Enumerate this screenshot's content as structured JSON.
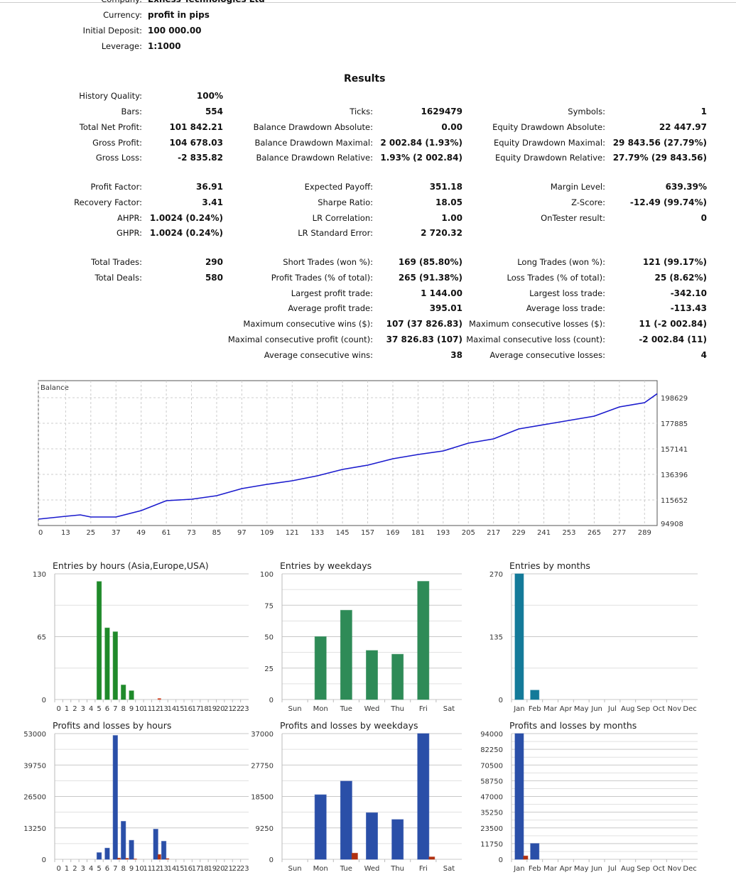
{
  "header": [
    {
      "label": "Company:",
      "value": "Exness Technologies Ltd"
    },
    {
      "label": "Currency:",
      "value": "profit in pips"
    },
    {
      "label": "Initial Deposit:",
      "value": "100 000.00"
    },
    {
      "label": "Leverage:",
      "value": "1:1000"
    }
  ],
  "results_title": "Results",
  "stats": [
    [
      [
        "History Quality:",
        "100%"
      ],
      null,
      null
    ],
    [
      [
        "Bars:",
        "554"
      ],
      [
        "Ticks:",
        "1629479"
      ],
      [
        "Symbols:",
        "1"
      ]
    ],
    [
      [
        "Total Net Profit:",
        "101 842.21"
      ],
      [
        "Balance Drawdown Absolute:",
        "0.00"
      ],
      [
        "Equity Drawdown Absolute:",
        "22 447.97"
      ]
    ],
    [
      [
        "Gross Profit:",
        "104 678.03"
      ],
      [
        "Balance Drawdown Maximal:",
        "2 002.84 (1.93%)"
      ],
      [
        "Equity Drawdown Maximal:",
        "29 843.56 (27.79%)"
      ]
    ],
    [
      [
        "Gross Loss:",
        "-2 835.82"
      ],
      [
        "Balance Drawdown Relative:",
        "1.93% (2 002.84)"
      ],
      [
        "Equity Drawdown Relative:",
        "27.79% (29 843.56)"
      ]
    ],
    [
      [
        "Profit Factor:",
        "36.91"
      ],
      [
        "Expected Payoff:",
        "351.18"
      ],
      [
        "Margin Level:",
        "639.39%"
      ]
    ],
    [
      [
        "Recovery Factor:",
        "3.41"
      ],
      [
        "Sharpe Ratio:",
        "18.05"
      ],
      [
        "Z-Score:",
        "-12.49 (99.74%)"
      ]
    ],
    [
      [
        "AHPR:",
        "1.0024 (0.24%)"
      ],
      [
        "LR Correlation:",
        "1.00"
      ],
      [
        "OnTester result:",
        "0"
      ]
    ],
    [
      [
        "GHPR:",
        "1.0024 (0.24%)"
      ],
      [
        "LR Standard Error:",
        "2 720.32"
      ],
      null
    ],
    [
      [
        "Total Trades:",
        "290"
      ],
      [
        "Short Trades (won %):",
        "169 (85.80%)"
      ],
      [
        "Long Trades (won %):",
        "121 (99.17%)"
      ]
    ],
    [
      [
        "Total Deals:",
        "580"
      ],
      [
        "Profit Trades (% of total):",
        "265 (91.38%)"
      ],
      [
        "Loss Trades (% of total):",
        "25 (8.62%)"
      ]
    ],
    [
      null,
      [
        "Largest profit trade:",
        "1 144.00"
      ],
      [
        "Largest loss trade:",
        "-342.10"
      ]
    ],
    [
      null,
      [
        "Average profit trade:",
        "395.01"
      ],
      [
        "Average loss trade:",
        "-113.43"
      ]
    ],
    [
      null,
      [
        "Maximum consecutive wins ($):",
        "107 (37 826.83)"
      ],
      [
        "Maximum consecutive losses ($):",
        "11 (-2 002.84)"
      ]
    ],
    [
      null,
      [
        "Maximal consecutive profit (count):",
        "37 826.83 (107)"
      ],
      [
        "Maximal consecutive loss (count):",
        "-2 002.84 (11)"
      ]
    ],
    [
      null,
      [
        "Average consecutive wins:",
        "38"
      ],
      [
        "Average consecutive losses:",
        "4"
      ]
    ]
  ],
  "chart_data": [
    {
      "type": "line",
      "title": "Balance",
      "x": [
        0,
        13,
        20,
        25,
        37,
        49,
        61,
        73,
        85,
        97,
        109,
        121,
        133,
        145,
        157,
        169,
        181,
        193,
        205,
        217,
        229,
        241,
        253,
        265,
        277,
        289,
        295
      ],
      "values": [
        100094,
        102399,
        103551,
        101823,
        101823,
        107008,
        115075,
        116227,
        119108,
        124870,
        128328,
        131209,
        135242,
        140428,
        143886,
        149072,
        152529,
        155410,
        161749,
        165206,
        173273,
        176730,
        180188,
        183645,
        191136,
        194593,
        201842
      ],
      "xticks": [
        0,
        13,
        25,
        37,
        49,
        61,
        73,
        85,
        97,
        109,
        121,
        133,
        145,
        157,
        169,
        181,
        193,
        205,
        217,
        229,
        241,
        253,
        265,
        277,
        289
      ],
      "yticks": [
        198629,
        177885,
        157141,
        136396,
        115652,
        94908
      ],
      "xlim": [
        0,
        295
      ],
      "ylim": [
        94908,
        198629
      ],
      "line_color": "#1a1acd"
    },
    {
      "type": "bar",
      "title": "Entries by hours (Asia,Europe,USA)",
      "categories": [
        "0",
        "1",
        "2",
        "3",
        "4",
        "5",
        "6",
        "7",
        "8",
        "9",
        "10",
        "11",
        "12",
        "13",
        "14",
        "15",
        "16",
        "17",
        "18",
        "19",
        "20",
        "21",
        "22",
        "23"
      ],
      "series": [
        {
          "name": "entries",
          "values": [
            0,
            0,
            0,
            0,
            0,
            122,
            74,
            70,
            15,
            9,
            0,
            0,
            0,
            0,
            0,
            0,
            0,
            0,
            0,
            0,
            0,
            0,
            0,
            0
          ],
          "color": "#1f8a2a"
        },
        {
          "name": "losses",
          "values": [
            0,
            0,
            0,
            0,
            0,
            0,
            0,
            0,
            0,
            0,
            0,
            0,
            1,
            0,
            0,
            0,
            0,
            0,
            0,
            0,
            0,
            0,
            0,
            0
          ],
          "color": "#d04020"
        }
      ],
      "yticks": [
        130,
        65,
        0
      ],
      "ylim": [
        0,
        130
      ]
    },
    {
      "type": "bar",
      "title": "Entries by weekdays",
      "categories": [
        "Sun",
        "Mon",
        "Tue",
        "Wed",
        "Thu",
        "Fri",
        "Sat"
      ],
      "series": [
        {
          "name": "entries",
          "values": [
            0,
            50,
            71,
            39,
            36,
            94,
            0
          ],
          "color": "#2e8b57"
        }
      ],
      "yticks": [
        100,
        75,
        50,
        25,
        0
      ],
      "ylim": [
        0,
        100
      ]
    },
    {
      "type": "bar",
      "title": "Entries by months",
      "categories": [
        "Jan",
        "Feb",
        "Mar",
        "Apr",
        "May",
        "Jun",
        "Jul",
        "Aug",
        "Sep",
        "Oct",
        "Nov",
        "Dec"
      ],
      "series": [
        {
          "name": "entries",
          "values": [
            270,
            20,
            0,
            0,
            0,
            0,
            0,
            0,
            0,
            0,
            0,
            0
          ],
          "color": "#137a99"
        }
      ],
      "yticks": [
        270,
        135,
        0
      ],
      "ylim": [
        0,
        270
      ]
    },
    {
      "type": "bar",
      "title": "Profits and losses by hours",
      "categories": [
        "0",
        "1",
        "2",
        "3",
        "4",
        "5",
        "6",
        "7",
        "8",
        "9",
        "10",
        "11",
        "12",
        "13",
        "14",
        "15",
        "16",
        "17",
        "18",
        "19",
        "20",
        "21",
        "22",
        "23"
      ],
      "series": [
        {
          "name": "profits",
          "values": [
            0,
            0,
            0,
            0,
            0,
            2800,
            4700,
            52200,
            16000,
            8000,
            0,
            0,
            12700,
            7600,
            0,
            0,
            0,
            0,
            0,
            0,
            0,
            0,
            0,
            0
          ],
          "color": "#2a4fa8"
        },
        {
          "name": "losses",
          "values": [
            0,
            0,
            0,
            0,
            0,
            0,
            0,
            500,
            400,
            150,
            0,
            0,
            2000,
            300,
            0,
            0,
            0,
            0,
            0,
            0,
            0,
            0,
            0,
            0
          ],
          "color": "#b03010"
        }
      ],
      "yticks": [
        53000,
        39750,
        26500,
        13250,
        0
      ],
      "ylim": [
        0,
        53000
      ]
    },
    {
      "type": "bar",
      "title": "Profits and losses by weekdays",
      "categories": [
        "Sun",
        "Mon",
        "Tue",
        "Wed",
        "Thu",
        "Fri",
        "Sat"
      ],
      "series": [
        {
          "name": "profits",
          "values": [
            0,
            19000,
            23000,
            13700,
            11700,
            37000,
            0
          ],
          "color": "#2a4fa8"
        },
        {
          "name": "losses",
          "values": [
            0,
            0,
            1800,
            0,
            0,
            700,
            0
          ],
          "color": "#b03010"
        }
      ],
      "yticks": [
        37000,
        27750,
        18500,
        9250,
        0
      ],
      "ylim": [
        0,
        37000
      ]
    },
    {
      "type": "bar",
      "title": "Profits and losses by months",
      "categories": [
        "Jan",
        "Feb",
        "Mar",
        "Apr",
        "May",
        "Jun",
        "Jul",
        "Aug",
        "Sep",
        "Oct",
        "Nov",
        "Dec"
      ],
      "series": [
        {
          "name": "profits",
          "values": [
            94000,
            11800,
            0,
            0,
            0,
            0,
            0,
            0,
            0,
            0,
            0,
            0
          ],
          "color": "#2a4fa8"
        },
        {
          "name": "losses",
          "values": [
            2500,
            0,
            0,
            0,
            0,
            0,
            0,
            0,
            0,
            0,
            0,
            0
          ],
          "color": "#b03010"
        }
      ],
      "yticks": [
        94000,
        82250,
        70500,
        58750,
        47000,
        35250,
        23500,
        11750,
        0
      ],
      "ylim": [
        0,
        94000
      ]
    }
  ]
}
